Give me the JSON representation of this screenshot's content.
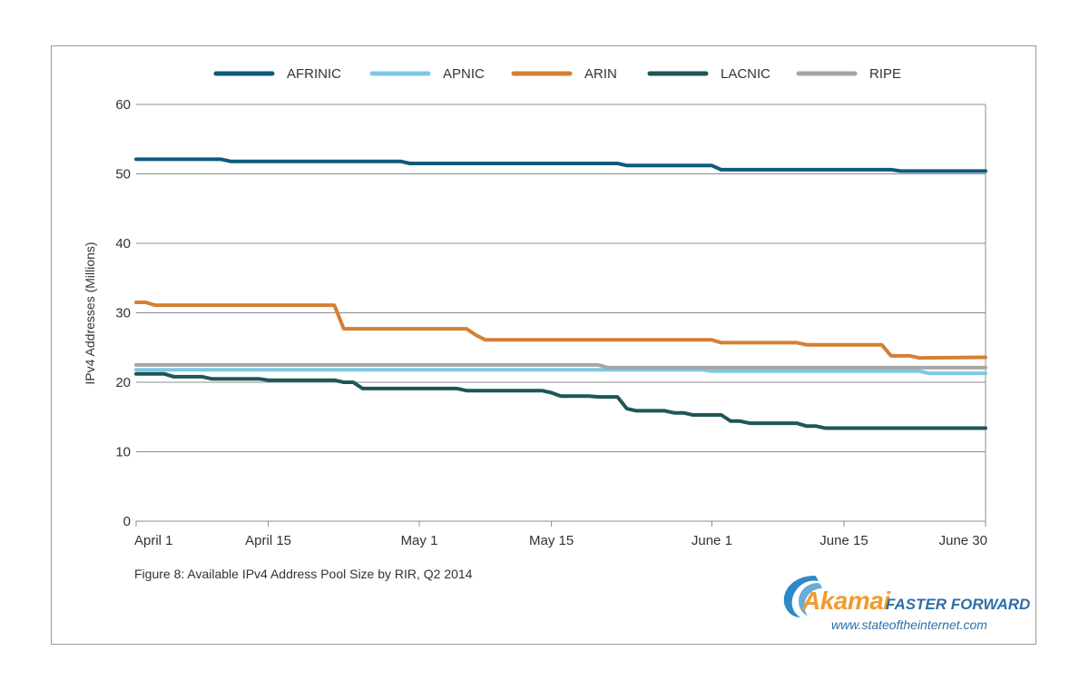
{
  "chart_data": {
    "type": "line",
    "title": "Figure 8: Available IPv4 Address Pool Size by RIR, Q2 2014",
    "ylabel": "IPv4 Addresses (Millions)",
    "xlabel": "",
    "ylim": [
      0,
      60
    ],
    "yticks": [
      0,
      10,
      20,
      30,
      40,
      50,
      60
    ],
    "xlim": [
      0,
      90
    ],
    "xticks": [
      {
        "day": 0,
        "label": "April 1"
      },
      {
        "day": 14,
        "label": "April 15"
      },
      {
        "day": 30,
        "label": "May 1"
      },
      {
        "day": 44,
        "label": "May 15"
      },
      {
        "day": 61,
        "label": "June 1"
      },
      {
        "day": 75,
        "label": "June 15"
      },
      {
        "day": 90,
        "label": "June 30"
      }
    ],
    "legend_position": "top",
    "grid": "horizontal",
    "series": [
      {
        "name": "AFRINIC",
        "color": "#0e5a7e",
        "points": [
          [
            0,
            52.1
          ],
          [
            9,
            52.1
          ],
          [
            10,
            51.8
          ],
          [
            28,
            51.8
          ],
          [
            29,
            51.5
          ],
          [
            51,
            51.5
          ],
          [
            52,
            51.2
          ],
          [
            61,
            51.2
          ],
          [
            62,
            50.6
          ],
          [
            80,
            50.6
          ],
          [
            81,
            50.4
          ],
          [
            90,
            50.4
          ]
        ]
      },
      {
        "name": "APNIC",
        "color": "#7ec8e3",
        "points": [
          [
            0,
            21.8
          ],
          [
            60,
            21.8
          ],
          [
            61,
            21.6
          ],
          [
            83,
            21.6
          ],
          [
            84,
            21.3
          ],
          [
            90,
            21.3
          ]
        ]
      },
      {
        "name": "ARIN",
        "color": "#d47f33",
        "points": [
          [
            0,
            31.5
          ],
          [
            1,
            31.5
          ],
          [
            2,
            31.1
          ],
          [
            21,
            31.1
          ],
          [
            22,
            27.7
          ],
          [
            35,
            27.7
          ],
          [
            36,
            26.8
          ],
          [
            37,
            26.1
          ],
          [
            61,
            26.1
          ],
          [
            62,
            25.7
          ],
          [
            70,
            25.7
          ],
          [
            71,
            25.4
          ],
          [
            79,
            25.4
          ],
          [
            80,
            23.8
          ],
          [
            82,
            23.8
          ],
          [
            83,
            23.5
          ],
          [
            90,
            23.6
          ]
        ]
      },
      {
        "name": "LACNIC",
        "color": "#1f5656",
        "points": [
          [
            0,
            21.2
          ],
          [
            3,
            21.2
          ],
          [
            4,
            20.8
          ],
          [
            7,
            20.8
          ],
          [
            8,
            20.5
          ],
          [
            13,
            20.5
          ],
          [
            14,
            20.3
          ],
          [
            21,
            20.3
          ],
          [
            22,
            20.0
          ],
          [
            23,
            20.0
          ],
          [
            24,
            19.1
          ],
          [
            34,
            19.1
          ],
          [
            35,
            18.8
          ],
          [
            43,
            18.8
          ],
          [
            44,
            18.5
          ],
          [
            45,
            18.0
          ],
          [
            48,
            18.0
          ],
          [
            49,
            17.9
          ],
          [
            51,
            17.9
          ],
          [
            52,
            16.2
          ],
          [
            53,
            15.9
          ],
          [
            56,
            15.9
          ],
          [
            57,
            15.6
          ],
          [
            58,
            15.6
          ],
          [
            59,
            15.3
          ],
          [
            62,
            15.3
          ],
          [
            63,
            14.4
          ],
          [
            64,
            14.4
          ],
          [
            65,
            14.1
          ],
          [
            70,
            14.1
          ],
          [
            71,
            13.7
          ],
          [
            72,
            13.7
          ],
          [
            73,
            13.4
          ],
          [
            90,
            13.4
          ]
        ]
      },
      {
        "name": "RIPE",
        "color": "#a6a6a6",
        "points": [
          [
            0,
            22.5
          ],
          [
            49,
            22.5
          ],
          [
            50,
            22.1
          ],
          [
            90,
            22.1
          ]
        ]
      }
    ]
  },
  "branding": {
    "logo_word": "Akamai",
    "tagline": "FASTER FORWARD",
    "url": "www.stateoftheinternet.com",
    "swoosh_color": "#2d89c8"
  }
}
